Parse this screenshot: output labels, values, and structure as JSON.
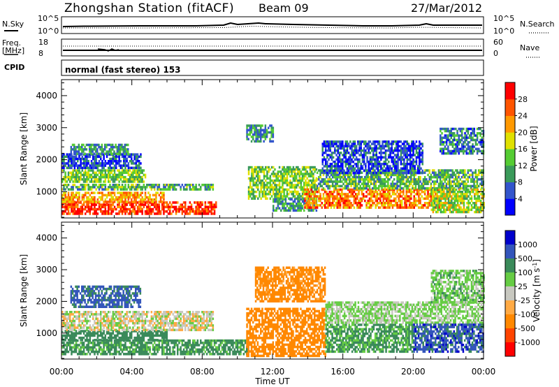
{
  "header": {
    "title": "Zhongshan Station (fitACF)",
    "beam": "Beam 09",
    "date": "27/Mar/2012"
  },
  "strip_nsky": {
    "left_label": "N.Sky",
    "right_label": "N.Search",
    "left_ticks": [
      "10^5",
      "10^0"
    ],
    "right_ticks": [
      "10^5",
      "10^0"
    ]
  },
  "strip_freq": {
    "left_label_1": "Freq.",
    "left_label_2": "[MHz]",
    "right_label": "Nave",
    "left_ticks": [
      "18",
      "8"
    ],
    "right_ticks": [
      "60",
      "0"
    ]
  },
  "cpid": {
    "label": "CPID",
    "value": "normal (fast stereo) 153"
  },
  "chart_data": [
    {
      "type": "heatmap",
      "quantity": "Power",
      "ylabel": "Slant Range [km]",
      "xlabel": "Time UT",
      "xlim": [
        0,
        24
      ],
      "ylim": [
        180,
        4500
      ],
      "y_ticks": [
        1000,
        2000,
        3000,
        4000
      ],
      "x_ticks": [
        "00:00",
        "04:00",
        "08:00",
        "12:00",
        "16:00",
        "20:00",
        "00:00"
      ],
      "colorbar": {
        "label": "Power [dB]",
        "ticks": [
          "4",
          "8",
          "12",
          "16",
          "20",
          "24",
          "28"
        ],
        "colors": [
          "#0000ff",
          "#3355cc",
          "#3a9a5a",
          "#55cc33",
          "#e0e000",
          "#ff9900",
          "#ff5500",
          "#ff0000"
        ]
      },
      "regions": [
        {
          "t0": 0.0,
          "t1": 8.8,
          "r0": 350,
          "r1": 700,
          "v": 28
        },
        {
          "t0": 0.0,
          "t1": 5.8,
          "r0": 700,
          "r1": 1000,
          "v": 22
        },
        {
          "t0": 0.0,
          "t1": 8.6,
          "r0": 1050,
          "r1": 1250,
          "v": 12
        },
        {
          "t0": 0.0,
          "t1": 4.8,
          "r0": 1300,
          "r1": 1700,
          "v": 14
        },
        {
          "t0": 0.0,
          "t1": 4.5,
          "r0": 1750,
          "r1": 2200,
          "v": 6
        },
        {
          "t0": 0.5,
          "t1": 3.8,
          "r0": 2200,
          "r1": 2500,
          "v": 10
        },
        {
          "t0": 10.5,
          "t1": 12.0,
          "r0": 2600,
          "r1": 3100,
          "v": 10
        },
        {
          "t0": 10.6,
          "t1": 14.5,
          "r0": 800,
          "r1": 1800,
          "v": 14
        },
        {
          "t0": 12.0,
          "t1": 14.5,
          "r0": 400,
          "r1": 800,
          "v": 10
        },
        {
          "t0": 13.8,
          "t1": 21.5,
          "r0": 500,
          "r1": 1100,
          "v": 24
        },
        {
          "t0": 14.5,
          "t1": 24.0,
          "r0": 1100,
          "r1": 1700,
          "v": 12
        },
        {
          "t0": 14.8,
          "t1": 20.5,
          "r0": 1600,
          "r1": 2600,
          "v": 5
        },
        {
          "t0": 21.0,
          "t1": 24.0,
          "r0": 400,
          "r1": 1100,
          "v": 16
        },
        {
          "t0": 21.5,
          "t1": 24.0,
          "r0": 2200,
          "r1": 3000,
          "v": 8
        }
      ]
    },
    {
      "type": "heatmap",
      "quantity": "Velocity",
      "ylabel": "Slant Range [km]",
      "xlabel": "Time UT",
      "xlim": [
        0,
        24
      ],
      "ylim": [
        180,
        4500
      ],
      "y_ticks": [
        1000,
        2000,
        3000,
        4000
      ],
      "x_ticks": [
        "00:00",
        "04:00",
        "08:00",
        "12:00",
        "16:00",
        "20:00",
        "00:00"
      ],
      "colorbar": {
        "label": "Velocity [m s^-1]",
        "ticks": [
          "1000",
          "500",
          "100",
          "25",
          "-25",
          "-100",
          "-500",
          "-1000"
        ],
        "colors": [
          "#0000cc",
          "#3355bb",
          "#3a8a5a",
          "#66cc44",
          "#c8c8c0",
          "#ffaa44",
          "#ff8800",
          "#ff4400",
          "#ff0000"
        ]
      },
      "regions": [
        {
          "t0": 0.0,
          "t1": 10.5,
          "r0": 350,
          "r1": 800,
          "v": 150
        },
        {
          "t0": 0.0,
          "t1": 6.0,
          "r0": 800,
          "r1": 1100,
          "v": 300
        },
        {
          "t0": 0.0,
          "t1": 8.6,
          "r0": 1100,
          "r1": 1700,
          "v": 0
        },
        {
          "t0": 0.5,
          "t1": 4.5,
          "r0": 1800,
          "r1": 2500,
          "v": 600
        },
        {
          "t0": 10.5,
          "t1": 15.0,
          "r0": 300,
          "r1": 1800,
          "v": -300
        },
        {
          "t0": 11.0,
          "t1": 15.0,
          "r0": 2000,
          "r1": 3100,
          "v": -200
        },
        {
          "t0": 15.0,
          "t1": 20.0,
          "r0": 400,
          "r1": 1300,
          "v": 120
        },
        {
          "t0": 15.0,
          "t1": 24.0,
          "r0": 1300,
          "r1": 2000,
          "v": 40
        },
        {
          "t0": 20.0,
          "t1": 24.0,
          "r0": 400,
          "r1": 1300,
          "v": 700
        },
        {
          "t0": 21.0,
          "t1": 24.0,
          "r0": 2000,
          "r1": 3000,
          "v": 60
        }
      ]
    }
  ]
}
